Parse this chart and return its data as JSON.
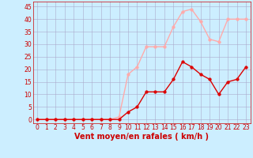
{
  "x_hours": [
    0,
    1,
    2,
    3,
    4,
    5,
    6,
    7,
    8,
    9,
    10,
    11,
    12,
    13,
    14,
    15,
    16,
    17,
    18,
    19,
    20,
    21,
    22,
    23
  ],
  "rafales": [
    0,
    0,
    0,
    0,
    0,
    0,
    0,
    0,
    0,
    1,
    18,
    21,
    29,
    29,
    29,
    37,
    43,
    44,
    39,
    32,
    31,
    40,
    40,
    40
  ],
  "moyen": [
    0,
    0,
    0,
    0,
    0,
    0,
    0,
    0,
    0,
    0,
    3,
    5,
    11,
    11,
    11,
    16,
    23,
    21,
    18,
    16,
    10,
    15,
    16,
    21
  ],
  "rafales_color": "#ffaaaa",
  "moyen_color": "#dd0000",
  "bg_color": "#cceeff",
  "grid_color": "#aaaacc",
  "xlabel": "Vent moyen/en rafales ( km/h )",
  "xlabel_color": "#cc0000",
  "yticks": [
    0,
    5,
    10,
    15,
    20,
    25,
    30,
    35,
    40,
    45
  ],
  "xticks": [
    0,
    1,
    2,
    3,
    4,
    5,
    6,
    7,
    8,
    9,
    10,
    11,
    12,
    13,
    14,
    15,
    16,
    17,
    18,
    19,
    20,
    21,
    22,
    23
  ],
  "ylim": [
    -1.5,
    47
  ],
  "xlim": [
    -0.5,
    23.5
  ],
  "tick_color": "#cc0000",
  "tick_label_fontsize": 5.5,
  "xlabel_fontsize": 7,
  "marker_size": 2.5,
  "linewidth": 1.0
}
